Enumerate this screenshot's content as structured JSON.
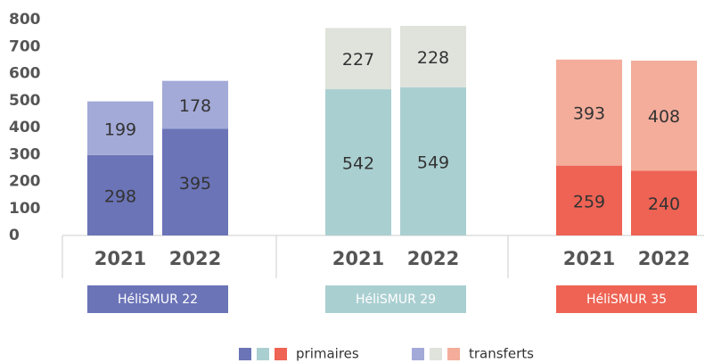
{
  "chart_data": {
    "type": "stacked-bar",
    "groups": [
      {
        "name": "HéliSMUR 22",
        "color": "#6b74b7",
        "categories": [
          "2021",
          "2022"
        ]
      },
      {
        "name": "HéliSMUR 29",
        "color": "#aacfd1",
        "categories": [
          "2021",
          "2022"
        ]
      },
      {
        "name": "HéliSMUR 35",
        "color": "#ee6354",
        "categories": [
          "2021",
          "2022"
        ]
      }
    ],
    "series": [
      {
        "name": "primaires",
        "colors": [
          "#6b74b7",
          "#aacfd1",
          "#ee6354"
        ],
        "values": [
          [
            298,
            395
          ],
          [
            542,
            549
          ],
          [
            259,
            240
          ]
        ]
      },
      {
        "name": "transferts",
        "colors": [
          "#a3aad8",
          "#dfe3dc",
          "#f4ad9b"
        ],
        "values": [
          [
            199,
            178
          ],
          [
            227,
            228
          ],
          [
            393,
            408
          ]
        ]
      }
    ],
    "ylim": [
      0,
      800
    ],
    "yticks": [
      0,
      100,
      200,
      300,
      400,
      500,
      600,
      700,
      800
    ],
    "grid": false,
    "legend": "bottom"
  }
}
